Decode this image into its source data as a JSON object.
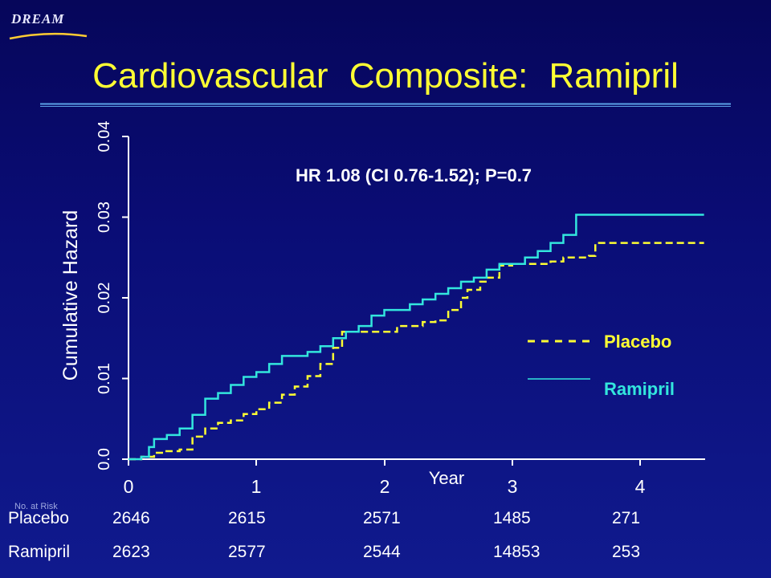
{
  "brand": "DREAM",
  "title": "Cardiovascular Composite: Ramipril",
  "colors": {
    "background": "#0a0d76",
    "title": "#ffff33",
    "placebo": "#ffff33",
    "ramipril": "#33e6dd",
    "axis": "#ffffff"
  },
  "chart_data": {
    "type": "line",
    "title": "",
    "xlabel": "Year",
    "ylabel": "Cumulative Hazard",
    "xlim": [
      0,
      4.5
    ],
    "ylim": [
      0,
      0.04
    ],
    "xticks": [
      "0",
      "1",
      "2",
      "3",
      "4"
    ],
    "yticks": [
      "0.0",
      "0.01",
      "0.02",
      "0.03",
      "0.04"
    ],
    "annotation": "HR 1.08 (CI 0.76-1.52); P=0.7",
    "legend_placement": "right",
    "series": [
      {
        "name": "Placebo",
        "legend_label": "- - - -  Placebo",
        "style": "dashed",
        "color": "#ffff33",
        "x": [
          0,
          0.1,
          0.2,
          0.28,
          0.4,
          0.5,
          0.6,
          0.7,
          0.8,
          0.9,
          1.0,
          1.1,
          1.2,
          1.3,
          1.4,
          1.5,
          1.6,
          1.67,
          1.8,
          1.9,
          2.0,
          2.1,
          2.2,
          2.3,
          2.4,
          2.5,
          2.6,
          2.65,
          2.75,
          2.8,
          2.9,
          3.0,
          3.1,
          3.2,
          3.3,
          3.4,
          3.5,
          3.6,
          3.65,
          4.0,
          4.5
        ],
        "y": [
          0.0,
          0.0003,
          0.0008,
          0.001,
          0.0012,
          0.0028,
          0.0038,
          0.0045,
          0.0048,
          0.0056,
          0.0062,
          0.007,
          0.008,
          0.009,
          0.0103,
          0.0118,
          0.0138,
          0.0158,
          0.0158,
          0.0158,
          0.0158,
          0.0165,
          0.0165,
          0.017,
          0.0172,
          0.0185,
          0.02,
          0.021,
          0.022,
          0.0225,
          0.024,
          0.0242,
          0.0242,
          0.0242,
          0.0245,
          0.025,
          0.025,
          0.0252,
          0.0268,
          0.0268,
          0.0268
        ]
      },
      {
        "name": "Ramipril",
        "legend_label": "Ramipril",
        "style": "solid",
        "color": "#33e6dd",
        "x": [
          0,
          0.1,
          0.16,
          0.2,
          0.3,
          0.4,
          0.5,
          0.6,
          0.7,
          0.8,
          0.9,
          1.0,
          1.1,
          1.2,
          1.3,
          1.4,
          1.5,
          1.6,
          1.7,
          1.8,
          1.9,
          2.0,
          2.1,
          2.2,
          2.3,
          2.4,
          2.5,
          2.6,
          2.7,
          2.8,
          2.9,
          3.0,
          3.1,
          3.2,
          3.3,
          3.4,
          3.45,
          3.5,
          3.6,
          4.0,
          4.5
        ],
        "y": [
          0.0,
          0.0003,
          0.0015,
          0.0025,
          0.003,
          0.0038,
          0.0055,
          0.0075,
          0.0082,
          0.0092,
          0.0102,
          0.0108,
          0.0118,
          0.0128,
          0.0128,
          0.0133,
          0.014,
          0.015,
          0.0158,
          0.0165,
          0.0178,
          0.0185,
          0.0185,
          0.0192,
          0.0198,
          0.0205,
          0.0212,
          0.022,
          0.0225,
          0.0235,
          0.0242,
          0.0242,
          0.025,
          0.0258,
          0.0268,
          0.0278,
          0.0278,
          0.0303,
          0.0303,
          0.0303,
          0.0303
        ]
      }
    ],
    "risk_table": {
      "header": "No. at Risk",
      "rows": [
        {
          "label": "Placebo",
          "values": [
            "2646",
            "2615",
            "2571",
            "1485",
            "271"
          ]
        },
        {
          "label": "Ramipril",
          "values": [
            "2623",
            "2577",
            "2544",
            "14853",
            "253"
          ]
        }
      ]
    }
  }
}
